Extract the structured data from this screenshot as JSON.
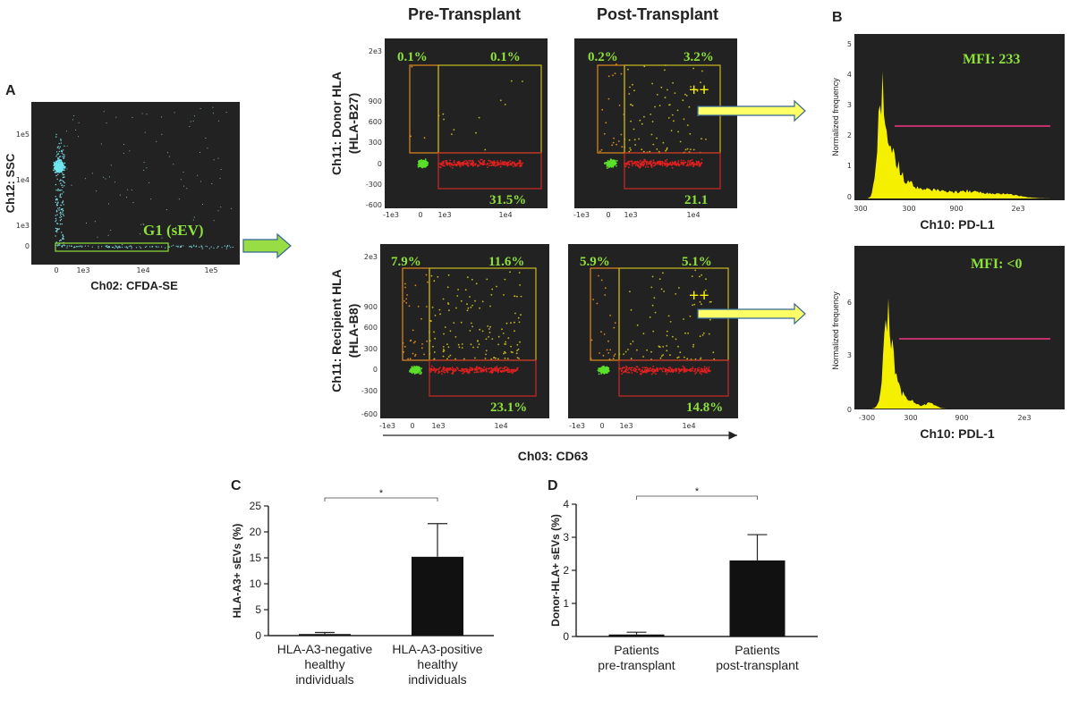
{
  "panel_labels": {
    "a": "A",
    "b": "B",
    "c": "C",
    "d": "D"
  },
  "column_headers": {
    "pre": "Pre-Transplant",
    "post": "Post-Transplant"
  },
  "panel_a": {
    "ylabel": "Ch12: SSC",
    "xlabel": "Ch02: CFDA-SE",
    "gate": "G1 (sEV)",
    "yticks": [
      "1e5",
      "1e4",
      "1e3",
      "0"
    ],
    "xticks": [
      "0",
      "1e3",
      "1e4",
      "1e5"
    ]
  },
  "dot_plots": {
    "row1_ylabel_line1": "Ch11: Donor HLA",
    "row1_ylabel_line2": "(HLA-B27)",
    "row2_ylabel_line1": "Ch11: Recipient HLA",
    "row2_ylabel_line2": "(HLA-B8)",
    "xlabel": "Ch03: CD63",
    "marker": "++",
    "row1_yticks": [
      "2e3",
      "900",
      "600",
      "300",
      "0",
      "-300",
      "-600"
    ],
    "row2_yticks": [
      "2e3",
      "900",
      "600",
      "300",
      "0",
      "-300",
      "-600"
    ],
    "xticks": [
      "-1e3",
      "0",
      "1e3",
      "1e4"
    ],
    "plots": [
      {
        "tl": "0.1%",
        "tr": "0.1%",
        "br": "31.5%"
      },
      {
        "tl": "0.2%",
        "tr": "3.2%",
        "br": "21.1"
      },
      {
        "tl": "7.9%",
        "tr": "11.6%",
        "br": "23.1%"
      },
      {
        "tl": "5.9%",
        "tr": "5.1%",
        "br": "14.8%"
      }
    ]
  },
  "histograms": [
    {
      "mfi": "MFI: 233",
      "xlabel": "Ch10: PD-L1",
      "ylabel": "Normalized frequency",
      "yticks": [
        "5",
        "4",
        "3",
        "2",
        "1",
        "0"
      ],
      "xticks": [
        "300",
        "300",
        "900",
        "2e3"
      ]
    },
    {
      "mfi": "MFI: <0",
      "xlabel": "Ch10: PDL-1",
      "ylabel": "Normalized frequency",
      "yticks": [
        "6",
        "3",
        "0"
      ],
      "xticks": [
        "-300",
        "300",
        "900",
        "2e3"
      ]
    }
  ],
  "colors": {
    "dark_bg": "#222222",
    "green_text": "#8ee03a",
    "yellow_gate": "#c8b820",
    "orange_gate": "#e08a20",
    "red_gate": "#cc2a2a",
    "histogram": "#f5f000",
    "mfi_line": "#c0306a",
    "arrow_yellow": "#ffff66",
    "arrow_green": "#99dd44"
  },
  "chart_data": [
    {
      "type": "bar",
      "panel": "C",
      "categories": [
        "HLA-A3-negative healthy individuals",
        "HLA-A3-positive healthy individuals"
      ],
      "category_lines": [
        [
          "HLA-A3-negative",
          "healthy",
          "individuals"
        ],
        [
          "HLA-A3-positive",
          "healthy",
          "individuals"
        ]
      ],
      "values": [
        0.3,
        15.2
      ],
      "errors": [
        0.3,
        6.4
      ],
      "ylabel": "HLA-A3+ sEVs (%)",
      "ylim": [
        0,
        25
      ],
      "yticks": [
        0,
        5,
        10,
        15,
        20,
        25
      ],
      "significance": "*"
    },
    {
      "type": "bar",
      "panel": "D",
      "categories": [
        "Patients pre-transplant",
        "Patients post-transplant"
      ],
      "category_lines": [
        [
          "Patients",
          "pre-transplant"
        ],
        [
          "Patients",
          "post-transplant"
        ]
      ],
      "values": [
        0.06,
        2.3
      ],
      "errors": [
        0.07,
        0.78
      ],
      "ylabel": "Donor-HLA+ sEVs (%)",
      "ylim": [
        0,
        4
      ],
      "yticks": [
        0,
        1,
        2,
        3,
        4
      ],
      "significance": "*"
    }
  ]
}
